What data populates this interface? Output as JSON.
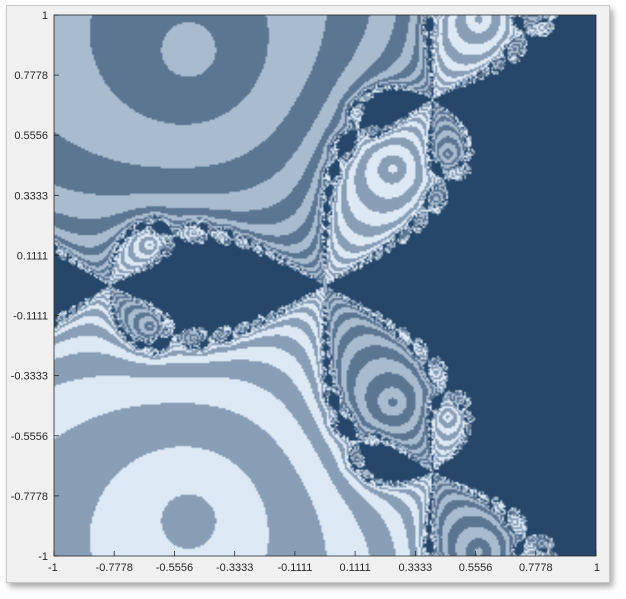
{
  "chart_data": {
    "type": "heatmap",
    "title": "",
    "xlabel": "",
    "ylabel": "",
    "xlim": [
      -1,
      1
    ],
    "ylim": [
      -1,
      1
    ],
    "grid": false,
    "x_ticks": [
      "-1",
      "-0.7778",
      "-0.5556",
      "-0.3333",
      "-0.1111",
      "0.1111",
      "0.3333",
      "0.5556",
      "0.7778",
      "1"
    ],
    "y_ticks": [
      "1",
      "0.7778",
      "0.5556",
      "0.3333",
      "0.1111",
      "-0.1111",
      "-0.3333",
      "-0.5556",
      "-0.7778",
      "-1"
    ],
    "description_of_values": "Newton-fractal basin map over the complex square; three attraction basins (roots at angles 0, 120, 240 degrees)",
    "colormap": [
      "#26476a",
      "#5c7591",
      "#889eb5",
      "#a9bccf",
      "#dce9f5"
    ]
  }
}
